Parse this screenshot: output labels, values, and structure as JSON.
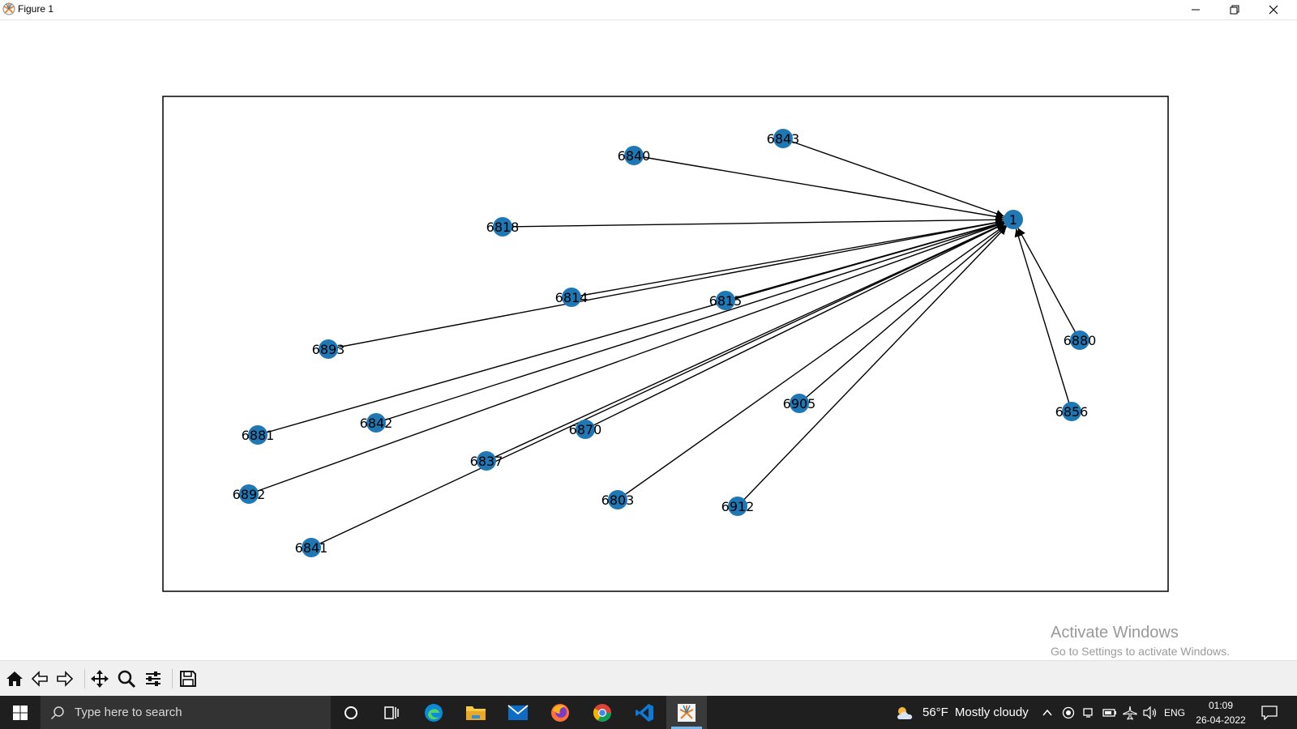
{
  "window": {
    "title": "Figure 1"
  },
  "watermark": {
    "line1": "Activate Windows",
    "line2": "Go to Settings to activate Windows."
  },
  "chart_data": {
    "type": "network",
    "target_node": "1",
    "nodes": [
      {
        "id": "1"
      },
      {
        "id": "6843"
      },
      {
        "id": "6840"
      },
      {
        "id": "6818"
      },
      {
        "id": "6814"
      },
      {
        "id": "6815"
      },
      {
        "id": "6893"
      },
      {
        "id": "6880"
      },
      {
        "id": "6856"
      },
      {
        "id": "6905"
      },
      {
        "id": "6881"
      },
      {
        "id": "6842"
      },
      {
        "id": "6870"
      },
      {
        "id": "6837"
      },
      {
        "id": "6892"
      },
      {
        "id": "6803"
      },
      {
        "id": "6912"
      },
      {
        "id": "6841"
      }
    ],
    "edges": [
      [
        "6843",
        "1"
      ],
      [
        "6840",
        "1"
      ],
      [
        "6818",
        "1"
      ],
      [
        "6814",
        "1"
      ],
      [
        "6815",
        "1"
      ],
      [
        "6893",
        "1"
      ],
      [
        "6880",
        "1"
      ],
      [
        "6856",
        "1"
      ],
      [
        "6905",
        "1"
      ],
      [
        "6881",
        "1"
      ],
      [
        "6842",
        "1"
      ],
      [
        "6870",
        "1"
      ],
      [
        "6837",
        "1"
      ],
      [
        "6892",
        "1"
      ],
      [
        "6803",
        "1"
      ],
      [
        "6912",
        "1"
      ],
      [
        "6841",
        "1"
      ]
    ],
    "node_color": "#1f77b4",
    "edge_color": "#000000",
    "directed": true
  },
  "toolbar": {
    "buttons": [
      "home-icon",
      "back-icon",
      "forward-icon",
      "pan-icon",
      "zoom-icon",
      "configure-subplots-icon",
      "save-icon"
    ]
  },
  "taskbar": {
    "search_placeholder": "Type here to search",
    "weather_temp": "56°F",
    "weather_desc": "Mostly cloudy",
    "language": "ENG",
    "time": "01:09",
    "date": "26-04-2022"
  }
}
